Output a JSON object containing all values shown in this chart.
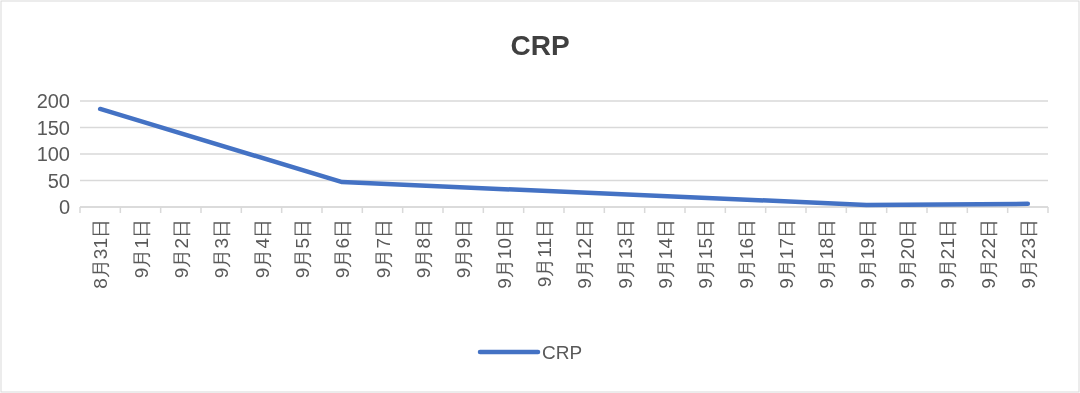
{
  "chart_data": {
    "type": "line",
    "title": "CRP",
    "categories": [
      "8月31日",
      "9月1日",
      "9月2日",
      "9月3日",
      "9月4日",
      "9月5日",
      "9月6日",
      "9月7日",
      "9月8日",
      "9月9日",
      "9月10日",
      "9月11日",
      "9月12日",
      "9月13日",
      "9月14日",
      "9月15日",
      "9月16日",
      "9月17日",
      "9月18日",
      "9月19日",
      "9月20日",
      "9月21日",
      "9月22日",
      "9月23日"
    ],
    "series": [
      {
        "name": "CRP",
        "color": "#4472c4",
        "values": [
          185,
          null,
          null,
          null,
          null,
          null,
          47,
          null,
          null,
          null,
          null,
          null,
          null,
          null,
          null,
          null,
          null,
          null,
          null,
          4,
          null,
          null,
          null,
          6
        ]
      }
    ],
    "ylim": [
      0,
      200
    ],
    "yticks": [
      0,
      50,
      100,
      150,
      200
    ],
    "grid": "y",
    "legend": "bottom",
    "marker": "none",
    "line_style": "solid"
  }
}
